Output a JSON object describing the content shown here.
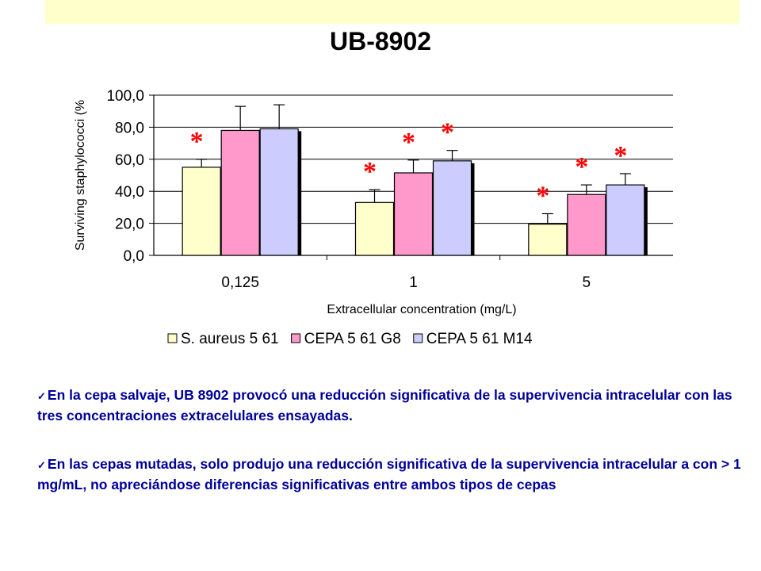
{
  "slide": {
    "bullets": [
      "En la cepa salvaje, UB 8902  provocó una reducción significativa de la supervivencia intracelular con las tres concentraciones extracelulares ensayadas.",
      "En las cepas mutadas, solo produjo  una reducción significativa de la supervivencia intracelular a con  > 1 mg/mL, no apreciándose diferencias significativas entre ambos tipos de cepas"
    ],
    "bullet_icon": "check-icon",
    "colors": {
      "banner": "#FFFFCC",
      "text": "#000099",
      "asterisk": "#FF0000"
    }
  },
  "chart_data": {
    "type": "bar",
    "title": "UB-8902",
    "xlabel": "Extracellular concentration (mg/L)",
    "ylabel": "Surviving staphylococci (%",
    "categories": [
      "0,125",
      "1",
      "5"
    ],
    "ylim": [
      0,
      100
    ],
    "yticks": [
      "0,0",
      "20,0",
      "40,0",
      "60,0",
      "80,0",
      "100,0"
    ],
    "grid": true,
    "legend_position": "bottom",
    "series": [
      {
        "name": "S. aureus 5 61",
        "color": "#FFFFCC",
        "values": [
          55,
          33,
          19.5
        ],
        "errors": [
          5,
          8,
          6.5
        ],
        "significant": [
          true,
          true,
          true
        ]
      },
      {
        "name": "CEPA 5 61 G8",
        "color": "#FF99CC",
        "values": [
          78,
          51.5,
          38
        ],
        "errors": [
          15,
          8,
          6
        ],
        "significant": [
          false,
          true,
          true
        ]
      },
      {
        "name": "CEPA 5 61 M14",
        "color": "#CCCCFF",
        "values": [
          79,
          59,
          44
        ],
        "errors": [
          15,
          6.5,
          7
        ],
        "significant": [
          false,
          true,
          true
        ]
      }
    ],
    "annotation_symbol": "*"
  }
}
